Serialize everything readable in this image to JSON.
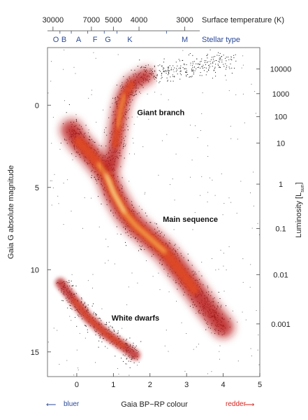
{
  "chart_data": {
    "type": "scatter",
    "xlabel": "Gaia BP−RP colour",
    "ylabel": "Gaia G absolute magnitude",
    "right_label": "Luminosity [L",
    "right_label_sub": "sun",
    "right_label_end": "]",
    "top_label": "Surface temperature (K)",
    "type_row_label": "Stellar type",
    "xlim": [
      -0.8,
      5
    ],
    "ylim": [
      16.5,
      -3.5
    ],
    "x_ticks": [
      0,
      1,
      2,
      3,
      4,
      5
    ],
    "y_ticks": [
      0,
      5,
      10,
      15
    ],
    "temperature_ticks": [
      {
        "label": "30000",
        "x": -0.65
      },
      {
        "label": "7000",
        "x": 0.4
      },
      {
        "label": "5000",
        "x": 1.0
      },
      {
        "label": "4000",
        "x": 1.7
      },
      {
        "label": "3000",
        "x": 2.95
      }
    ],
    "stellar_types": [
      {
        "label": "O",
        "x": -0.57
      },
      {
        "label": "B",
        "x": -0.35
      },
      {
        "label": "A",
        "x": 0.05
      },
      {
        "label": "F",
        "x": 0.5
      },
      {
        "label": "G",
        "x": 0.85
      },
      {
        "label": "K",
        "x": 1.45
      },
      {
        "label": "M",
        "x": 2.95
      }
    ],
    "luminosity_ticks": [
      {
        "label": "10000",
        "mag": -2.2
      },
      {
        "label": "1000",
        "mag": -0.7
      },
      {
        "label": "100",
        "mag": 0.7
      },
      {
        "label": "10",
        "mag": 2.3
      },
      {
        "label": "1",
        "mag": 4.8
      },
      {
        "label": "0.1",
        "mag": 7.5
      },
      {
        "label": "0.01",
        "mag": 10.3
      },
      {
        "label": "0.001",
        "mag": 13.3
      }
    ],
    "annotations": [
      {
        "label": "Giant branch",
        "x": 1.65,
        "y": 0.6
      },
      {
        "label": "Main sequence",
        "x": 2.35,
        "y": 7.1
      },
      {
        "label": "White dwarfs",
        "x": 0.95,
        "y": 13.1
      }
    ],
    "direction_labels": {
      "left": "bluer",
      "right": "redder"
    }
  },
  "colors": {
    "dense": "#fff2b0",
    "core": "#f6a24a",
    "mid": "#e04a26",
    "outer": "#b8151a",
    "points": "#111111",
    "blue": "#2b4a9a",
    "red": "#d8231d"
  }
}
